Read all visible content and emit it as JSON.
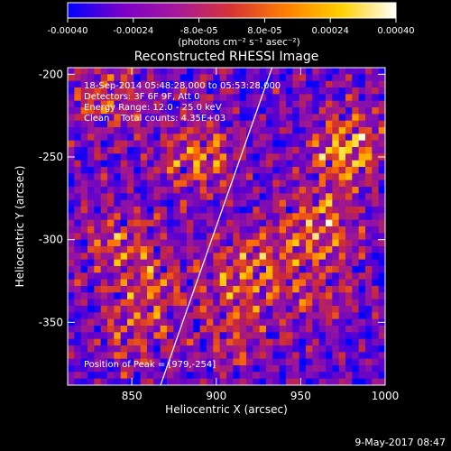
{
  "colorbar": {
    "tick_labels": [
      "-0.00040",
      "-0.00024",
      "-8.0e-05",
      "8.0e-05",
      "0.00024",
      "0.00040"
    ],
    "tick_values": [
      -0.0004,
      -0.00024,
      -8e-05,
      8e-05,
      0.00024,
      0.0004
    ],
    "range": [
      -0.0004,
      0.0004
    ],
    "unit_label": "(photons cm⁻² s⁻¹ asec⁻²)",
    "colors": [
      "#0000ff",
      "#7a00c8",
      "#a8189a",
      "#d83434",
      "#ff8000",
      "#ffd000",
      "#ffffff"
    ]
  },
  "chart_data": {
    "type": "heatmap",
    "title": "Reconstructed RHESSI Image",
    "xlabel": "Heliocentric X (arcsec)",
    "ylabel": "Heliocentric Y (arcsec)",
    "xlim": [
      812,
      1000
    ],
    "ylim": [
      -388,
      -196
    ],
    "xticks": [
      850,
      900,
      950,
      1000
    ],
    "yticks": [
      -200,
      -250,
      -300,
      -350
    ],
    "annotations": {
      "time": "18-Sep-2014 05:48:28.000 to 05:53:28.000",
      "detectors": "Detectors: 3F 6F 9F, Att 0",
      "energy": "Energy Range: 12.0 - 25.0 keV",
      "method": "Clean    Total counts: 4.35E+03",
      "peak": "Position of Peak = [979,-254]"
    },
    "limb_line": [
      [
        867,
        -388
      ],
      [
        933,
        -196
      ]
    ],
    "bright_regions": [
      {
        "x": 978,
        "y": -245,
        "intensity": 1.0
      },
      {
        "x": 960,
        "y": -290,
        "intensity": 0.8
      },
      {
        "x": 922,
        "y": -318,
        "intensity": 0.85
      },
      {
        "x": 888,
        "y": -250,
        "intensity": 0.8
      },
      {
        "x": 835,
        "y": -215,
        "intensity": 0.6
      },
      {
        "x": 840,
        "y": -300,
        "intensity": 0.6
      },
      {
        "x": 868,
        "y": -325,
        "intensity": 0.55
      },
      {
        "x": 850,
        "y": -355,
        "intensity": 0.55
      },
      {
        "x": 910,
        "y": -355,
        "intensity": 0.5
      },
      {
        "x": 960,
        "y": -330,
        "intensity": 0.45
      }
    ]
  },
  "footer": {
    "timestamp": "9-May-2017 08:47"
  }
}
